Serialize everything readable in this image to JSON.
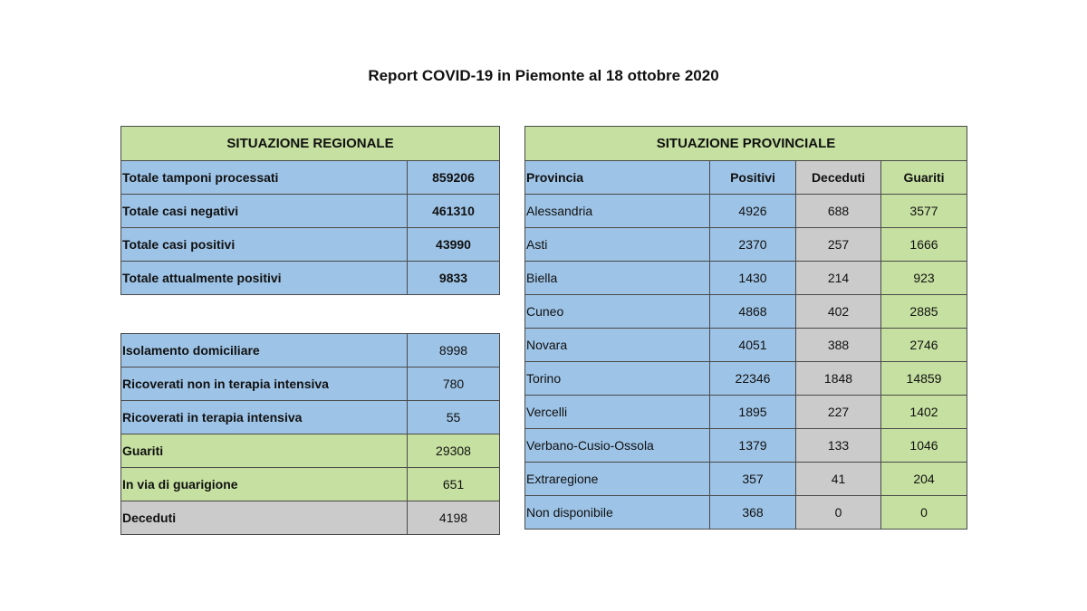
{
  "title": "Report COVID-19 in Piemonte al 18 ottobre 2020",
  "regional": {
    "header": "SITUAZIONE REGIONALE",
    "rows": [
      {
        "label": "Totale tamponi processati",
        "value": "859206"
      },
      {
        "label": "Totale casi negativi",
        "value": "461310"
      },
      {
        "label": "Totale casi positivi",
        "value": "43990"
      },
      {
        "label": "Totale attualmente positivi",
        "value": "9833"
      }
    ],
    "rows2": [
      {
        "label": "Isolamento domiciliare",
        "value": "8998"
      },
      {
        "label": "Ricoverati non in terapia intensiva",
        "value": "780"
      },
      {
        "label": "Ricoverati in terapia intensiva",
        "value": "55"
      },
      {
        "label": "Guariti",
        "value": "29308"
      },
      {
        "label": "In via di guarigione",
        "value": "651"
      },
      {
        "label": "Deceduti",
        "value": "4198"
      }
    ]
  },
  "provincial": {
    "header": "SITUAZIONE PROVINCIALE",
    "columns": [
      "Provincia",
      "Positivi",
      "Deceduti",
      "Guariti"
    ],
    "rows": [
      {
        "name": "Alessandria",
        "positivi": "4926",
        "deceduti": "688",
        "guariti": "3577"
      },
      {
        "name": "Asti",
        "positivi": "2370",
        "deceduti": "257",
        "guariti": "1666"
      },
      {
        "name": "Biella",
        "positivi": "1430",
        "deceduti": "214",
        "guariti": "923"
      },
      {
        "name": "Cuneo",
        "positivi": "4868",
        "deceduti": "402",
        "guariti": "2885"
      },
      {
        "name": "Novara",
        "positivi": "4051",
        "deceduti": "388",
        "guariti": "2746"
      },
      {
        "name": "Torino",
        "positivi": "22346",
        "deceduti": "1848",
        "guariti": "14859"
      },
      {
        "name": "Vercelli",
        "positivi": "1895",
        "deceduti": "227",
        "guariti": "1402"
      },
      {
        "name": "Verbano-Cusio-Ossola",
        "positivi": "1379",
        "deceduti": "133",
        "guariti": "1046"
      },
      {
        "name": "Extraregione",
        "positivi": "357",
        "deceduti": "41",
        "guariti": "204"
      },
      {
        "name": "Non disponibile",
        "positivi": "368",
        "deceduti": "0",
        "guariti": "0"
      }
    ]
  },
  "colors": {
    "blue": "#9dc3e6",
    "green": "#c5e0a0",
    "gray": "#cbcbcb"
  }
}
